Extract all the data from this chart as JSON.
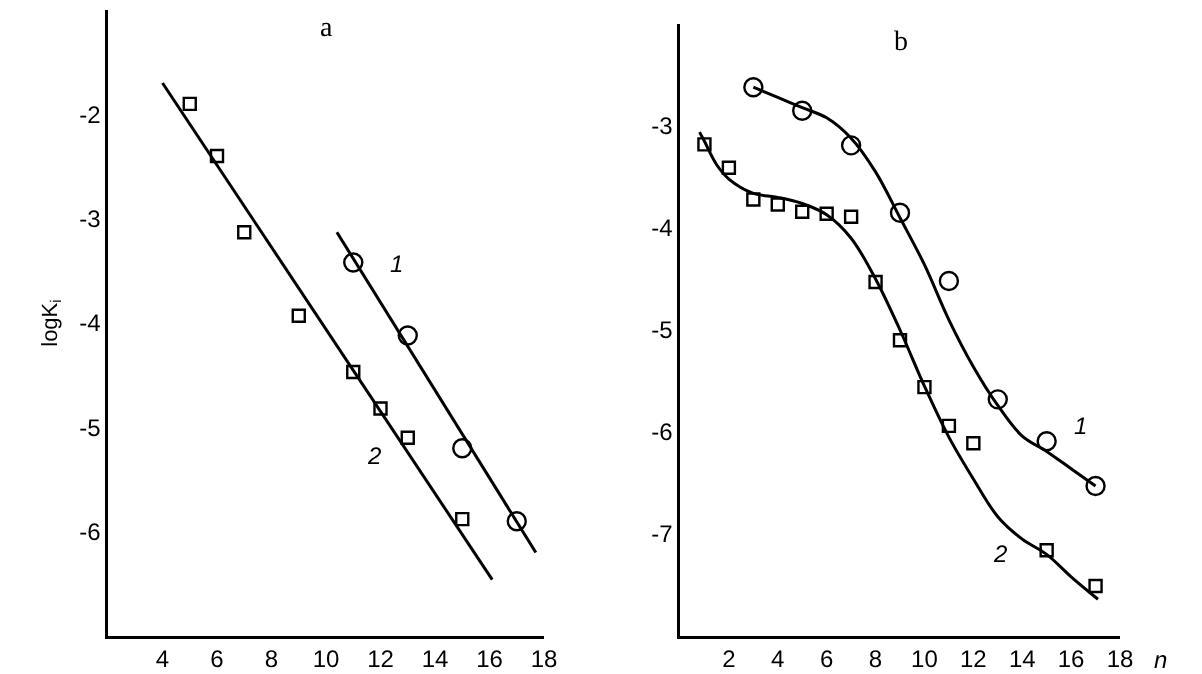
{
  "chart_data": [
    {
      "type": "scatter",
      "title": "a",
      "ylabel": "logK$_{i}$",
      "xlim": [
        2,
        18
      ],
      "xticks": [
        4,
        6,
        8,
        10,
        12,
        14,
        16,
        18
      ],
      "ylim": [
        -7,
        -1
      ],
      "yticks": [
        -2,
        -3,
        -4,
        -5,
        -6
      ],
      "series": [
        {
          "type": "scatter",
          "marker": "circle",
          "color": "#000000",
          "x": [
            11,
            13,
            15,
            17
          ],
          "values": [
            -3.42,
            -4.12,
            -5.2,
            -5.9
          ]
        },
        {
          "type": "scatter",
          "marker": "square",
          "color": "#000000",
          "x": [
            5,
            6,
            7,
            9,
            11,
            12,
            13,
            15
          ],
          "values": [
            -1.9,
            -2.4,
            -3.13,
            -3.93,
            -4.47,
            -4.82,
            -5.1,
            -5.88
          ]
        },
        {
          "type": "line",
          "marker": "none",
          "line_style": "solid",
          "color": "#000000",
          "x": [
            10.4,
            17.7
          ],
          "values": [
            -3.13,
            -6.2
          ]
        },
        {
          "type": "line",
          "marker": "none",
          "line_style": "solid",
          "color": "#000000",
          "x": [
            4,
            16.1
          ],
          "values": [
            -1.7,
            -6.46
          ]
        }
      ],
      "annotations": [
        "1",
        "2"
      ]
    },
    {
      "type": "scatter",
      "title": "b",
      "xlabel": "n",
      "xlim": [
        0,
        18
      ],
      "xticks": [
        2,
        4,
        6,
        8,
        10,
        12,
        14,
        16,
        18
      ],
      "ylim": [
        -8,
        -2
      ],
      "yticks": [
        -3,
        -4,
        -5,
        -6,
        -7
      ],
      "series": [
        {
          "type": "scatter",
          "marker": "circle",
          "color": "#000000",
          "x": [
            3,
            5,
            7,
            9,
            11,
            13,
            15,
            17
          ],
          "values": [
            -2.62,
            -2.85,
            -3.19,
            -3.85,
            -4.52,
            -5.68,
            -6.09,
            -6.53
          ]
        },
        {
          "type": "scatter",
          "marker": "square",
          "color": "#000000",
          "x": [
            1,
            2,
            3,
            4,
            5,
            6,
            7,
            8,
            9,
            10,
            11,
            12,
            15,
            17
          ],
          "values": [
            -3.18,
            -3.41,
            -3.72,
            -3.77,
            -3.84,
            -3.86,
            -3.89,
            -4.53,
            -5.1,
            -5.56,
            -5.94,
            -6.11,
            -7.16,
            -7.51
          ]
        },
        {
          "type": "line",
          "marker": "none",
          "line_style": "solid",
          "color": "#000000",
          "x": [
            3,
            4,
            5,
            6,
            7,
            8,
            9,
            10,
            11,
            12,
            13,
            14,
            15,
            16,
            17
          ],
          "values": [
            -2.62,
            -2.72,
            -2.82,
            -2.92,
            -3.12,
            -3.45,
            -3.9,
            -4.36,
            -4.9,
            -5.36,
            -5.74,
            -6.04,
            -6.19,
            -6.36,
            -6.53
          ]
        },
        {
          "type": "line",
          "marker": "none",
          "line_style": "solid",
          "color": "#000000",
          "x": [
            0.8,
            1,
            1.5,
            2,
            3,
            4,
            5,
            6,
            7,
            8,
            9,
            10,
            11,
            12,
            13,
            14,
            15,
            16,
            17.1
          ],
          "values": [
            -3.06,
            -3.15,
            -3.38,
            -3.52,
            -3.66,
            -3.7,
            -3.76,
            -3.87,
            -4.1,
            -4.5,
            -5.0,
            -5.55,
            -6.05,
            -6.46,
            -6.83,
            -7.05,
            -7.2,
            -7.42,
            -7.64
          ]
        }
      ],
      "annotations": [
        "1",
        "2"
      ]
    }
  ]
}
